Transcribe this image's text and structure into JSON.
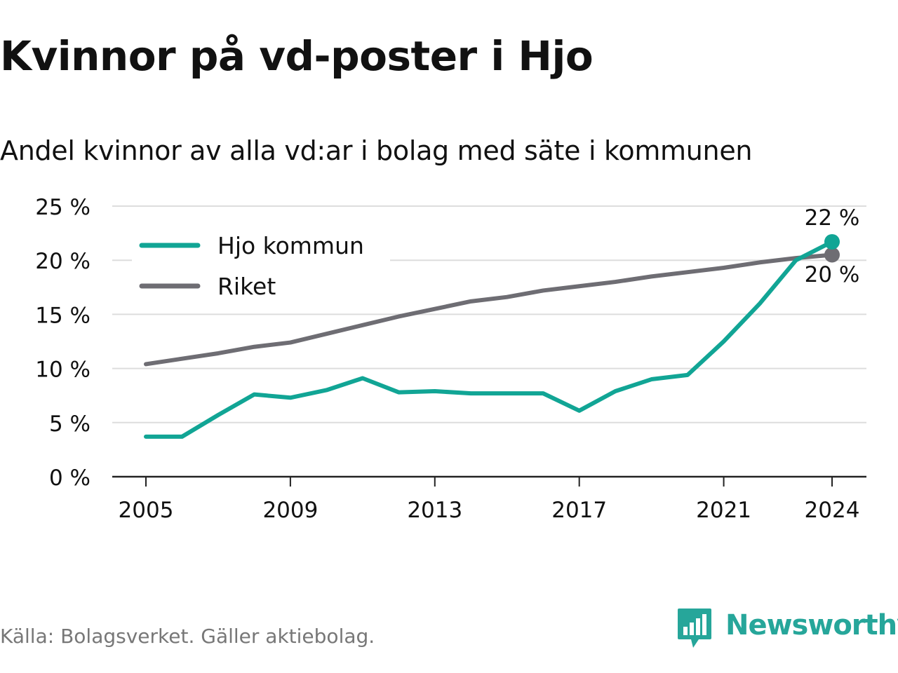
{
  "title": "Kvinnor på vd-poster i Hjo",
  "subtitle": "Andel kvinnor av alla vd:ar i bolag med säte i kommunen",
  "source": "Källa: Bolagsverket. Gäller aktiebolag.",
  "brand": {
    "name": "Newsworthy",
    "icon": "newsworthy-logo-icon"
  },
  "colors": {
    "hjo": "#11a595",
    "riket": "#6e6d73",
    "grid": "#dddddd",
    "axis": "#222222",
    "text": "#111111",
    "source": "#777777",
    "brand": "#26a69a"
  },
  "chart_data": {
    "type": "line",
    "x": [
      2005,
      2006,
      2007,
      2008,
      2009,
      2010,
      2011,
      2012,
      2013,
      2014,
      2015,
      2016,
      2017,
      2018,
      2019,
      2020,
      2021,
      2022,
      2023,
      2024
    ],
    "series": [
      {
        "name": "Hjo kommun",
        "color": "#11a595",
        "values": [
          3.7,
          3.7,
          5.7,
          7.6,
          7.3,
          8.0,
          9.1,
          7.8,
          7.9,
          7.7,
          7.7,
          7.7,
          6.1,
          7.9,
          9.0,
          9.4,
          12.5,
          16.0,
          20.0,
          21.7
        ],
        "end_label": "22 %"
      },
      {
        "name": "Riket",
        "color": "#6e6d73",
        "values": [
          10.4,
          10.9,
          11.4,
          12.0,
          12.4,
          13.2,
          14.0,
          14.8,
          15.5,
          16.2,
          16.6,
          17.2,
          17.6,
          18.0,
          18.5,
          18.9,
          19.3,
          19.8,
          20.2,
          20.5
        ],
        "end_label": "20 %"
      }
    ],
    "ylim": [
      0,
      25
    ],
    "yticks": [
      0,
      5,
      10,
      15,
      20,
      25
    ],
    "ytick_labels": [
      "0 %",
      "5 %",
      "10 %",
      "15 %",
      "20 %",
      "25 %"
    ],
    "xticks": [
      2005,
      2009,
      2013,
      2017,
      2021,
      2024
    ],
    "xtick_labels": [
      "2005",
      "2009",
      "2013",
      "2017",
      "2021",
      "2024"
    ],
    "grid": true,
    "legend_position": "top-left"
  }
}
